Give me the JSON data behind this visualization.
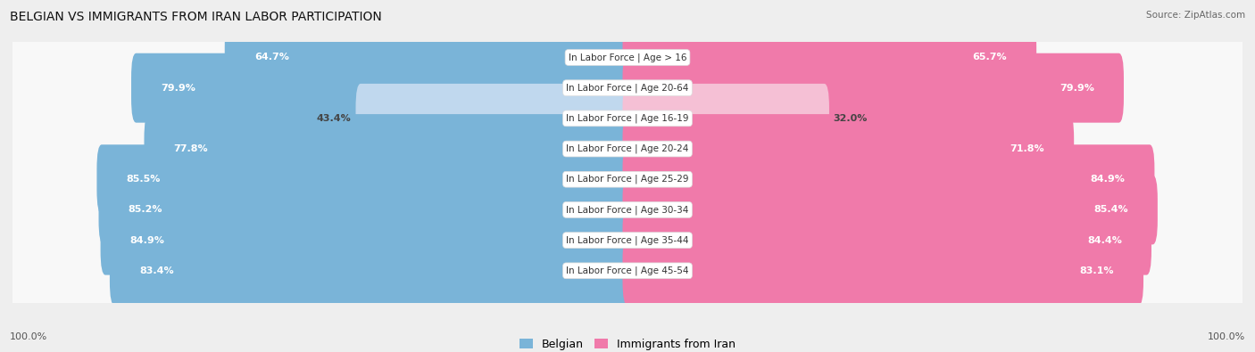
{
  "title": "BELGIAN VS IMMIGRANTS FROM IRAN LABOR PARTICIPATION",
  "source": "Source: ZipAtlas.com",
  "categories": [
    "In Labor Force | Age > 16",
    "In Labor Force | Age 20-64",
    "In Labor Force | Age 16-19",
    "In Labor Force | Age 20-24",
    "In Labor Force | Age 25-29",
    "In Labor Force | Age 30-34",
    "In Labor Force | Age 35-44",
    "In Labor Force | Age 45-54"
  ],
  "belgian_values": [
    64.7,
    79.9,
    43.4,
    77.8,
    85.5,
    85.2,
    84.9,
    83.4
  ],
  "iran_values": [
    65.7,
    79.9,
    32.0,
    71.8,
    84.9,
    85.4,
    84.4,
    83.1
  ],
  "belgian_color": "#7ab4d8",
  "iran_color": "#f07aaa",
  "belgian_light_color": "#c0d8ee",
  "iran_light_color": "#f5c0d5",
  "bg_color": "#eeeeee",
  "row_bg_color": "#f8f8f8",
  "max_value": 100.0,
  "legend_belgian": "Belgian",
  "legend_iran": "Immigrants from Iran",
  "bottom_left_label": "100.0%",
  "bottom_right_label": "100.0%"
}
